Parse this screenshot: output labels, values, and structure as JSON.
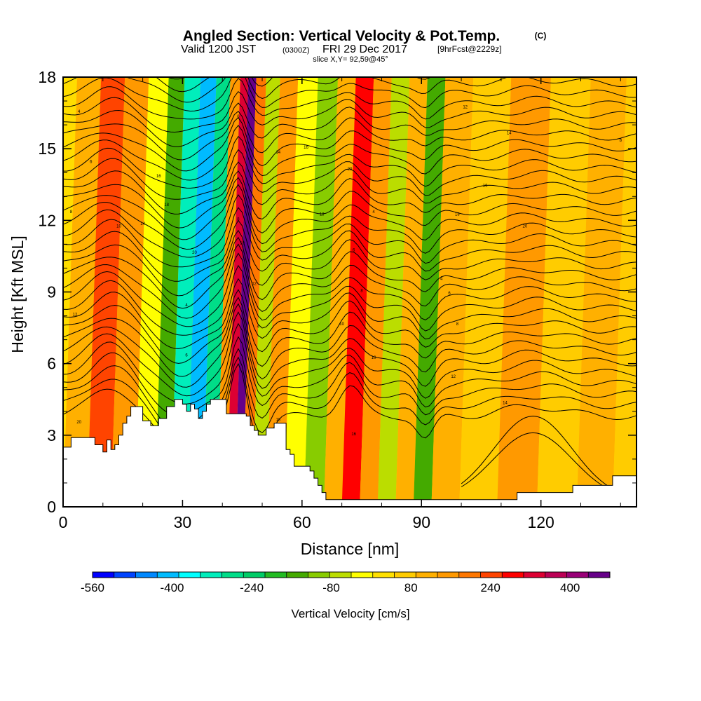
{
  "title": {
    "main": "Angled Section: Vertical Velocity & Pot.Temp.",
    "unit_tag": "(C)",
    "valid_prefix": "Valid 1200 JST",
    "valid_z": "(0300Z)",
    "valid_date": "FRI 29 Dec 2017",
    "fcst": "[9hrFcst@2229z]",
    "slice": "slice X,Y= 92,59@45°"
  },
  "chart_data": {
    "type": "heatmap",
    "xlabel": "Distance [nm]",
    "ylabel": "Height [Kft MSL]",
    "xlim": [
      0,
      144
    ],
    "ylim": [
      0,
      18
    ],
    "x_ticks": [
      "0",
      "30",
      "60",
      "90",
      "120"
    ],
    "y_ticks": [
      "0",
      "3",
      "6",
      "9",
      "12",
      "15",
      "18"
    ],
    "colorbar": {
      "label": "Vertical Velocity [cm/s]",
      "tick_labels": [
        "-560",
        "-400",
        "-240",
        "-80",
        "80",
        "240",
        "400"
      ],
      "colors": [
        "#0000ff",
        "#0044ff",
        "#0088ff",
        "#00bbff",
        "#00ffff",
        "#00eebb",
        "#00dd88",
        "#00cc66",
        "#22bb22",
        "#44aa00",
        "#88cc00",
        "#bbdd00",
        "#ffff00",
        "#ffe000",
        "#ffcc00",
        "#ffb000",
        "#ff9900",
        "#ff7700",
        "#ff4400",
        "#ff0000",
        "#dd0033",
        "#bb0055",
        "#990077",
        "#660088"
      ]
    },
    "velocity_bands": [
      {
        "x": 3,
        "v": 60
      },
      {
        "x": 9,
        "v": 180
      },
      {
        "x": 15,
        "v": 100
      },
      {
        "x": 21,
        "v": -80
      },
      {
        "x": 25,
        "v": -200
      },
      {
        "x": 29,
        "v": -360
      },
      {
        "x": 33,
        "v": -420
      },
      {
        "x": 37,
        "v": -300
      },
      {
        "x": 40,
        "v": 100
      },
      {
        "x": 42,
        "v": 260
      },
      {
        "x": 44,
        "v": 420
      },
      {
        "x": 46,
        "v": 150
      },
      {
        "x": 49,
        "v": -120
      },
      {
        "x": 53,
        "v": 100
      },
      {
        "x": 58,
        "v": -60
      },
      {
        "x": 63,
        "v": -140
      },
      {
        "x": 68,
        "v": 60
      },
      {
        "x": 72,
        "v": 210
      },
      {
        "x": 77,
        "v": 80
      },
      {
        "x": 81,
        "v": -100
      },
      {
        "x": 86,
        "v": 40
      },
      {
        "x": 90,
        "v": -180
      },
      {
        "x": 95,
        "v": 60
      },
      {
        "x": 104,
        "v": 20
      },
      {
        "x": 114,
        "v": 80
      },
      {
        "x": 124,
        "v": 30
      },
      {
        "x": 134,
        "v": 60
      },
      {
        "x": 142,
        "v": 20
      }
    ],
    "terrain_kft": [
      [
        0,
        2.5
      ],
      [
        2,
        2.9
      ],
      [
        5,
        2.9
      ],
      [
        8,
        2.6
      ],
      [
        10,
        2.3
      ],
      [
        11,
        2.8
      ],
      [
        12,
        2.4
      ],
      [
        13,
        2.6
      ],
      [
        14,
        3.0
      ],
      [
        15,
        3.5
      ],
      [
        16,
        3.8
      ],
      [
        17,
        4.2
      ],
      [
        18,
        4.2
      ],
      [
        20,
        3.6
      ],
      [
        22,
        3.4
      ],
      [
        24,
        3.7
      ],
      [
        26,
        4.2
      ],
      [
        28,
        4.5
      ],
      [
        30,
        4.3
      ],
      [
        31,
        4.0
      ],
      [
        32,
        4.3
      ],
      [
        33,
        4.1
      ],
      [
        34,
        3.7
      ],
      [
        35,
        4.0
      ],
      [
        36,
        4.3
      ],
      [
        37,
        4.5
      ],
      [
        40,
        4.5
      ],
      [
        41,
        3.9
      ],
      [
        44,
        3.9
      ],
      [
        46,
        3.8
      ],
      [
        47,
        3.4
      ],
      [
        48,
        3.2
      ],
      [
        49,
        3.0
      ],
      [
        50,
        3.0
      ],
      [
        51,
        3.3
      ],
      [
        53,
        3.5
      ],
      [
        55,
        3.5
      ],
      [
        56,
        2.4
      ],
      [
        57,
        2.2
      ],
      [
        58,
        1.7
      ],
      [
        61,
        1.7
      ],
      [
        62,
        1.5
      ],
      [
        63,
        1.2
      ],
      [
        64,
        0.9
      ],
      [
        65,
        0.6
      ],
      [
        66,
        0.3
      ],
      [
        113,
        0.3
      ],
      [
        114,
        0.6
      ],
      [
        127,
        0.6
      ],
      [
        128,
        0.9
      ],
      [
        137,
        0.9
      ],
      [
        138,
        1.3
      ],
      [
        144,
        1.3
      ]
    ],
    "theta_contours": {
      "count": 36,
      "base_kft": 3.8,
      "spacing_kft": 0.45,
      "labels": [
        "4",
        "6",
        "8",
        "10",
        "12",
        "14",
        "16",
        "18",
        "20"
      ]
    }
  }
}
